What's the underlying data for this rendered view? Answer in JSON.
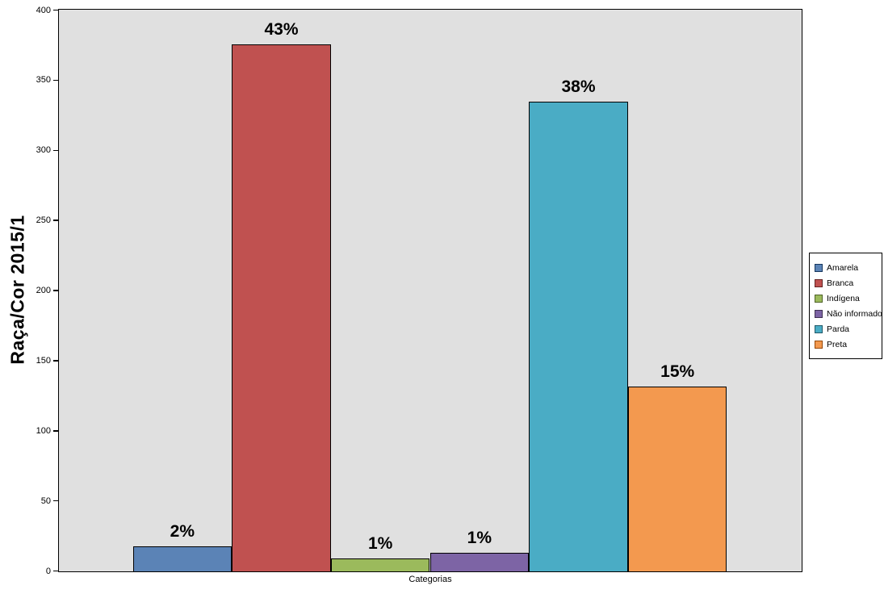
{
  "chart": {
    "y_axis_title": "Raça/Cor 2015/1",
    "x_axis_title": "Categorias"
  },
  "chart_data": {
    "type": "bar",
    "title": "",
    "ylabel": "Raça/Cor 2015/1",
    "xlabel": "Categorias",
    "ylim": [
      0,
      400
    ],
    "yticks": [
      0,
      50,
      100,
      150,
      200,
      250,
      300,
      350,
      400
    ],
    "grid": false,
    "legend_position": "right",
    "plot_background": "#E0E0E0",
    "categories": [
      "Amarela",
      "Branca",
      "Indígena",
      "Não informado",
      "Parda",
      "Preta"
    ],
    "values": [
      18,
      376,
      9,
      13,
      335,
      132
    ],
    "bar_labels": [
      "2%",
      "43%",
      "1%",
      "1%",
      "38%",
      "15%"
    ],
    "colors": [
      "#5B83B6",
      "#C05150",
      "#9BBA5C",
      "#7D64A5",
      "#4AACC5",
      "#F3994F"
    ],
    "legend_swatch_border_colors": [
      "#17375E",
      "#632423",
      "#4F6228",
      "#3F3151",
      "#215968",
      "#974806"
    ]
  }
}
